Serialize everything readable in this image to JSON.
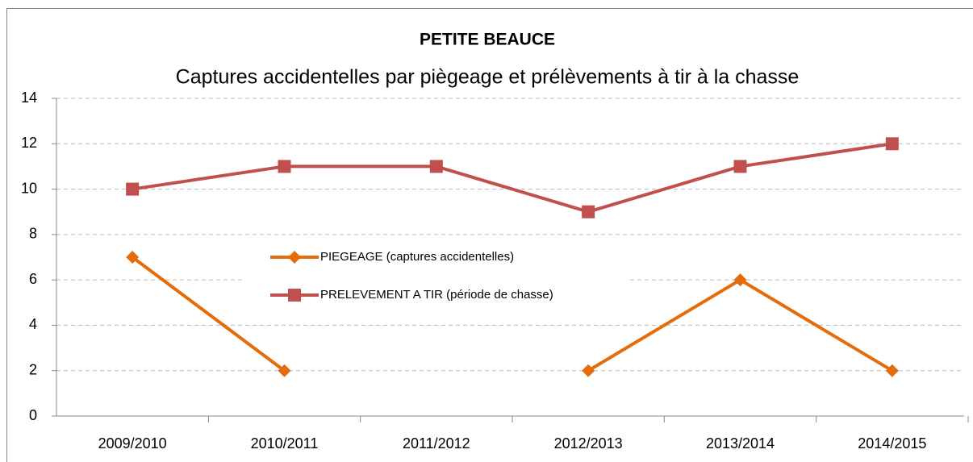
{
  "chart_data": {
    "type": "line",
    "title": "PETITE BEAUCE",
    "subtitle": "Captures accidentelles par piègeage et prélèvements à tir à la chasse",
    "categories": [
      "2009/2010",
      "2010/2011",
      "2011/2012",
      "2012/2013",
      "2013/2014",
      "2014/2015"
    ],
    "series": [
      {
        "name": "PIEGEAGE (captures accidentelles)",
        "color": "#e46c0a",
        "marker": "diamond",
        "values": [
          7,
          2,
          null,
          2,
          6,
          2
        ]
      },
      {
        "name": "PRELEVEMENT A TIR (période de chasse)",
        "color": "#c0504d",
        "marker": "square",
        "values": [
          10,
          11,
          11,
          9,
          11,
          12
        ]
      }
    ],
    "ylim": [
      0,
      14
    ],
    "yticks": [
      0,
      2,
      4,
      6,
      8,
      10,
      12,
      14
    ],
    "grid": true,
    "legend": "center"
  }
}
